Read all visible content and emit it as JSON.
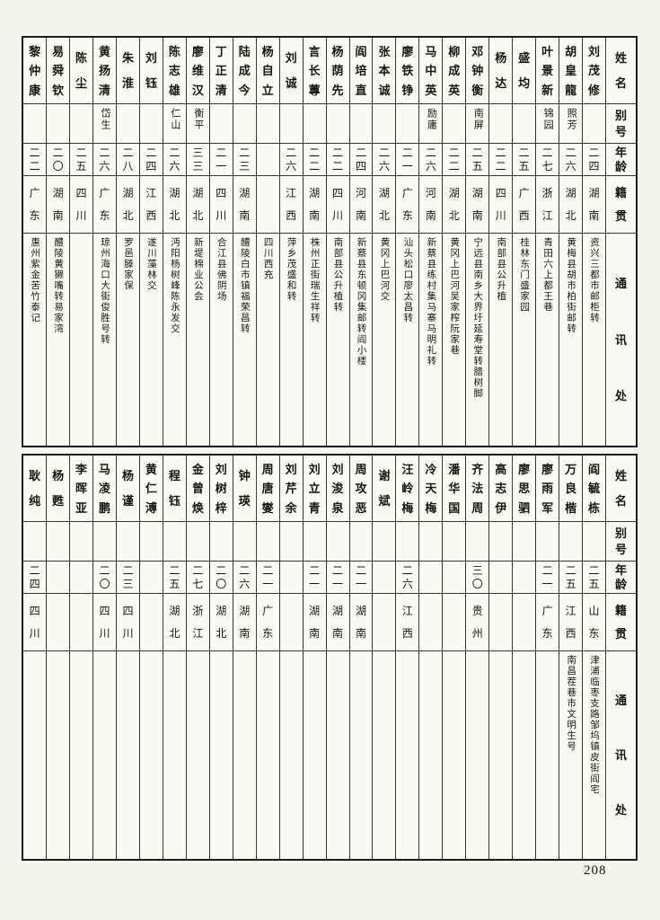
{
  "page": {
    "number": "208"
  },
  "headers": {
    "name": "姓名",
    "alias": "别号",
    "age": "年龄",
    "origin": "籍贯",
    "address": "通讯处"
  },
  "tables": [
    {
      "entries": [
        {
          "name": "刘茂修",
          "alias": "",
          "age": "二四",
          "origin": "湖南",
          "address": "资兴三都市邮柜转"
        },
        {
          "name": "胡皇龍",
          "alias": "照芳",
          "age": "二六",
          "origin": "湖北",
          "address": "黄梅县胡市柏街邮转"
        },
        {
          "name": "叶景新",
          "alias": "锦园",
          "age": "二七",
          "origin": "浙江",
          "address": "青田六上都王巷"
        },
        {
          "name": "盛均",
          "alias": "",
          "age": "二五",
          "origin": "广西",
          "address": "桂林东门盛家园"
        },
        {
          "name": "杨达",
          "alias": "",
          "age": "二二",
          "origin": "四川",
          "address": "南部县公升植"
        },
        {
          "name": "邓钟衡",
          "alias": "南屏",
          "age": "二五",
          "origin": "湖南",
          "address": "宁远县南乡大界圩延寿堂转腊树脚"
        },
        {
          "name": "柳成英",
          "alias": "",
          "age": "二二",
          "origin": "湖北",
          "address": "黄冈上巴河吴家榨阮家巷"
        },
        {
          "name": "马中英",
          "alias": "励庸",
          "age": "二六",
          "origin": "河南",
          "address": "新蔡县练村集马寨马明礼转"
        },
        {
          "name": "廖铁铮",
          "alias": "",
          "age": "二一",
          "origin": "广东",
          "address": "汕头松口廖太昌转"
        },
        {
          "name": "张本诚",
          "alias": "",
          "age": "二六",
          "origin": "湖北",
          "address": "黄冈上巴河交"
        },
        {
          "name": "阎培直",
          "alias": "",
          "age": "二四",
          "origin": "河南",
          "address": "新蔡县东顿冈集邮转阎小楼"
        },
        {
          "name": "杨荫先",
          "alias": "",
          "age": "二二",
          "origin": "四川",
          "address": "南部县公升植转"
        },
        {
          "name": "言长蓴",
          "alias": "",
          "age": "二二",
          "origin": "湖南",
          "address": "株州正街瑞生祥转"
        },
        {
          "name": "刘诚",
          "alias": "",
          "age": "二六",
          "origin": "江西",
          "address": "萍乡茂盛和转"
        },
        {
          "name": "杨自立",
          "alias": "",
          "age": "",
          "origin": "",
          "address": "四川西充"
        },
        {
          "name": "陆成今",
          "alias": "",
          "age": "二三",
          "origin": "湖南",
          "address": "醴陵白市镇福荣昌转"
        },
        {
          "name": "丁正清",
          "alias": "",
          "age": "二一",
          "origin": "四川",
          "address": "合江县佛阴场"
        },
        {
          "name": "廖维汉",
          "alias": "衡平",
          "age": "三三",
          "origin": "湖北",
          "address": "新堤棉业公会"
        },
        {
          "name": "陈志雄",
          "alias": "仁山",
          "age": "二六",
          "origin": "湖北",
          "address": "沔阳杨树峰陈永发交"
        },
        {
          "name": "刘钰",
          "alias": "",
          "age": "二四",
          "origin": "江西",
          "address": "遂川藻林交"
        },
        {
          "name": "朱淮",
          "alias": "",
          "age": "二八",
          "origin": "湖北",
          "address": "罗邑滕家保"
        },
        {
          "name": "黄扬清",
          "alias": "岱生",
          "age": "二六",
          "origin": "广东",
          "address": "琼州海口大街俊胜号转"
        },
        {
          "name": "陈尘",
          "alias": "",
          "age": "二五",
          "origin": "四川",
          "address": ""
        },
        {
          "name": "易舜钦",
          "alias": "",
          "age": "二〇",
          "origin": "湖南",
          "address": "醴陵黄獭嘴转易家湾"
        },
        {
          "name": "黎仲康",
          "alias": "",
          "age": "二二",
          "origin": "广东",
          "address": "惠州紫金苦竹泰记"
        }
      ]
    },
    {
      "entries": [
        {
          "name": "阎毓栋",
          "alias": "",
          "age": "二五",
          "origin": "山东",
          "address": "津浦临枣支路邹坞镇皮街阎宅"
        },
        {
          "name": "万良楷",
          "alias": "",
          "age": "二五",
          "origin": "江西",
          "address": "南昌茬巷市文明生号"
        },
        {
          "name": "廖雨军",
          "alias": "",
          "age": "二一",
          "origin": "广东",
          "address": ""
        },
        {
          "name": "廖思驷",
          "alias": "",
          "age": "",
          "origin": "",
          "address": ""
        },
        {
          "name": "高志伊",
          "alias": "",
          "age": "",
          "origin": "",
          "address": ""
        },
        {
          "name": "齐法周",
          "alias": "",
          "age": "三〇",
          "origin": "贵州",
          "address": ""
        },
        {
          "name": "潘华国",
          "alias": "",
          "age": "",
          "origin": "",
          "address": ""
        },
        {
          "name": "冷天梅",
          "alias": "",
          "age": "",
          "origin": "",
          "address": ""
        },
        {
          "name": "汪岭梅",
          "alias": "",
          "age": "二六",
          "origin": "江西",
          "address": ""
        },
        {
          "name": "谢斌",
          "alias": "",
          "age": "",
          "origin": "",
          "address": ""
        },
        {
          "name": "周攻恶",
          "alias": "",
          "age": "二一",
          "origin": "湖南",
          "address": ""
        },
        {
          "name": "刘浚泉",
          "alias": "",
          "age": "二一",
          "origin": "湖南",
          "address": ""
        },
        {
          "name": "刘立青",
          "alias": "",
          "age": "二一",
          "origin": "湖南",
          "address": ""
        },
        {
          "name": "刘芹余",
          "alias": "",
          "age": "",
          "origin": "",
          "address": ""
        },
        {
          "name": "周唐燮",
          "alias": "",
          "age": "二一",
          "origin": "广东",
          "address": ""
        },
        {
          "name": "钟瑛",
          "alias": "",
          "age": "二六",
          "origin": "湖南",
          "address": ""
        },
        {
          "name": "刘树梓",
          "alias": "",
          "age": "二〇",
          "origin": "湖北",
          "address": ""
        },
        {
          "name": "金曾焕",
          "alias": "",
          "age": "二七",
          "origin": "浙江",
          "address": ""
        },
        {
          "name": "程钰",
          "alias": "",
          "age": "二五",
          "origin": "湖北",
          "address": ""
        },
        {
          "name": "黄仁溥",
          "alias": "",
          "age": "",
          "origin": "",
          "address": ""
        },
        {
          "name": "杨谨",
          "alias": "",
          "age": "二三",
          "origin": "四川",
          "address": ""
        },
        {
          "name": "马凌鹏",
          "alias": "",
          "age": "二〇",
          "origin": "四川",
          "address": ""
        },
        {
          "name": "李晖亚",
          "alias": "",
          "age": "",
          "origin": "",
          "address": ""
        },
        {
          "name": "杨甦",
          "alias": "",
          "age": "",
          "origin": "",
          "address": ""
        },
        {
          "name": "耿纯",
          "alias": "",
          "age": "二四",
          "origin": "四川",
          "address": ""
        }
      ]
    }
  ]
}
